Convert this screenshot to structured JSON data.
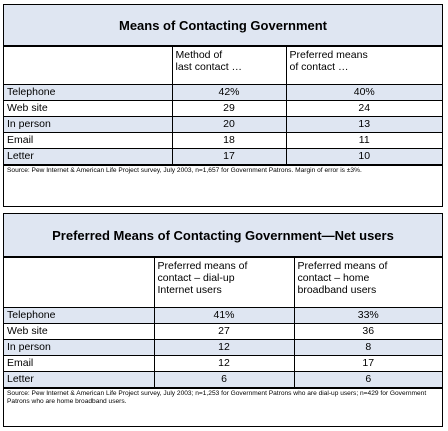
{
  "table1": {
    "title": "Means of Contacting Government",
    "headers": [
      "",
      "Method of last contact …",
      "Preferred means of contact …"
    ],
    "header_lines": [
      [],
      [
        "Method of",
        "last contact …"
      ],
      [
        "Preferred means",
        "of contact …"
      ]
    ],
    "rows": [
      {
        "label": "Telephone",
        "a": "42%",
        "b": "40%"
      },
      {
        "label": "Web site",
        "a": "29",
        "b": "24"
      },
      {
        "label": "In person",
        "a": "20",
        "b": "13"
      },
      {
        "label": "Email",
        "a": "18",
        "b": "11"
      },
      {
        "label": "Letter",
        "a": "17",
        "b": "10"
      }
    ],
    "source": "Source: Pew Internet & American Life Project survey, July 2003, n=1,657 for Government Patrons. Margin of error is ±3%."
  },
  "table2": {
    "title": "Preferred Means of Contacting Government—Net users",
    "header_lines": [
      [],
      [
        "Preferred means of",
        "contact – dial-up",
        "Internet users"
      ],
      [
        "Preferred means of",
        "contact – home",
        "broadband users"
      ]
    ],
    "rows": [
      {
        "label": "Telephone",
        "a": "41%",
        "b": "33%"
      },
      {
        "label": "Web site",
        "a": "27",
        "b": "36"
      },
      {
        "label": "In person",
        "a": "12",
        "b": "8"
      },
      {
        "label": "Email",
        "a": "12",
        "b": "17"
      },
      {
        "label": "Letter",
        "a": "6",
        "b": "6"
      }
    ],
    "source": "Source: Pew Internet & American Life Project survey, July 2003; n=1,253 for Government Patrons who are dial-up users; n=429 for Government Patrons who are home broadband users."
  },
  "colors": {
    "band": "#dfe6f2",
    "border": "#000000"
  }
}
